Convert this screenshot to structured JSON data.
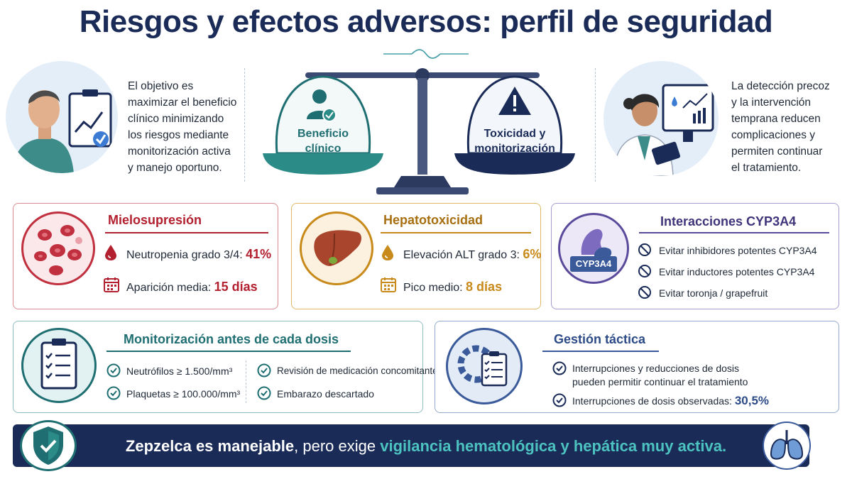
{
  "title": "Riesgos y efectos adversos: perfil de seguridad",
  "intro_left": [
    "El objetivo es",
    "maximizar el beneficio",
    "clínico minimizando",
    "los riesgos mediante",
    "monitorización activa",
    "y manejo oportuno."
  ],
  "intro_right": [
    "La detección precoz",
    "y la intervención",
    "temprana reducen",
    "complicaciones y",
    "permiten continuar",
    "el tratamiento."
  ],
  "scale": {
    "left_pan": [
      "Beneficio",
      "clínico"
    ],
    "right_pan": [
      "Toxicidad y",
      "monitorización"
    ]
  },
  "mielo": {
    "title": "Mielosupresión",
    "row1_label": "Neutropenia grado 3/4: ",
    "row1_value": "41%",
    "row2_label": "Aparición media: ",
    "row2_value": "15 días"
  },
  "hepato": {
    "title": "Hepatotoxicidad",
    "row1_label": "Elevación ALT grado 3: ",
    "row1_value": "6%",
    "row2_label": "Pico medio: ",
    "row2_value": "8 días"
  },
  "cyp": {
    "title": "Interacciones CYP3A4",
    "badge": "CYP3A4",
    "items": [
      "Evitar inhibidores potentes CYP3A4",
      "Evitar inductores potentes CYP3A4",
      "Evitar toronja / grapefruit"
    ]
  },
  "monitor": {
    "title": "Monitorización antes de cada dosis",
    "items": [
      "Neutrófilos ≥ 1.500/mm³",
      "Plaquetas ≥ 100.000/mm³",
      "Revisión de medicación concomitante",
      "Embarazo descartado"
    ]
  },
  "gestion": {
    "title": "Gestión táctica",
    "item1_line1": "Interrupciones y reducciones de dosis",
    "item1_line2": "pueden permitir continuar el tratamiento",
    "item2_label": "Interrupciones de dosis observadas: ",
    "item2_value": "30,5%"
  },
  "banner": {
    "part1": "Zepzelca es manejable",
    "part2": ", pero exige ",
    "part3": "vigilancia hematológica y hepática muy activa."
  },
  "colors": {
    "navy": "#1a2b57",
    "red": "#b3202f",
    "gold": "#c88a1a",
    "purple": "#5b4a9b",
    "teal": "#1f6f72",
    "blue": "#3a5a9a"
  }
}
